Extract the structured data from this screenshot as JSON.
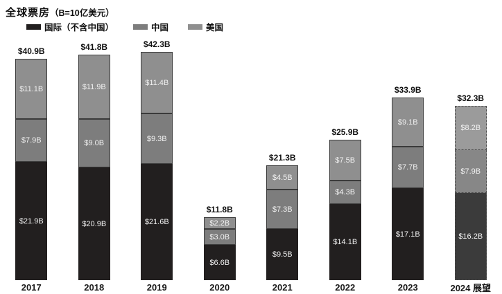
{
  "title": {
    "main": "全球票房",
    "unit": "（B=10亿美元）"
  },
  "legend": [
    {
      "label": "国际（不含中国）",
      "color": "#221f1f"
    },
    {
      "label": "中国",
      "color": "#7d7d7d"
    },
    {
      "label": "美国",
      "color": "#8f8f8f"
    }
  ],
  "chart_data": {
    "type": "bar",
    "stacked": true,
    "title": "全球票房（B=10亿美元）",
    "unit": "B = 10亿美元",
    "categories": [
      "2017",
      "2018",
      "2019",
      "2020",
      "2021",
      "2022",
      "2023",
      "2024 展望"
    ],
    "series": [
      {
        "name": "国际（不含中国）",
        "color": "#221f1f",
        "forecast_color": "#3b3b3b",
        "values": [
          21.9,
          20.9,
          21.6,
          6.6,
          9.5,
          14.1,
          17.1,
          16.2
        ]
      },
      {
        "name": "中国",
        "color": "#7d7d7d",
        "forecast_color": "#878787",
        "values": [
          7.9,
          9.0,
          9.3,
          3.0,
          7.3,
          4.3,
          7.7,
          7.9
        ]
      },
      {
        "name": "美国",
        "color": "#8f8f8f",
        "forecast_color": "#9b9b9b",
        "values": [
          11.1,
          11.9,
          11.4,
          2.2,
          4.5,
          7.5,
          9.1,
          8.2
        ]
      }
    ],
    "totals": [
      "$40.9B",
      "$41.8B",
      "$42.3B",
      "$11.8B",
      "$21.3B",
      "$25.9B",
      "$33.9B",
      "$32.3B"
    ],
    "forecast_index": 7,
    "value_label_format": "$#.#B",
    "legend_position": "top-left",
    "grid": false,
    "ylim_b": [
      0,
      46
    ]
  }
}
